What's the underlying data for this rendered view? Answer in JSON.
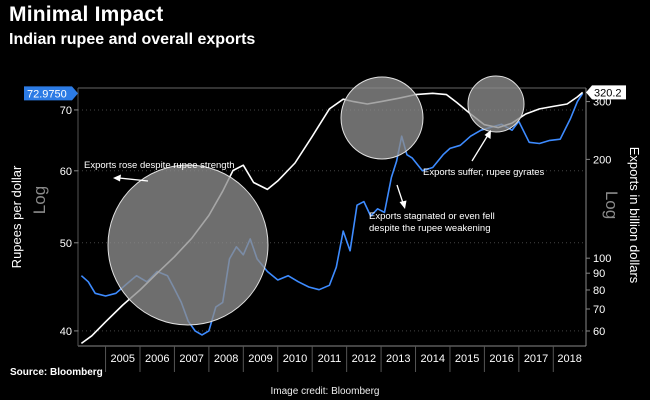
{
  "header": {
    "title": "Minimal Impact",
    "subtitle": "Indian rupee and overall exports"
  },
  "footer": {
    "source": "Source:  Bloomberg",
    "credit": "Image credit: Bloomberg"
  },
  "colors": {
    "rupee": "#3d8bff",
    "exports": "#ffffff",
    "badge": "#2c7be5",
    "circle": "#8d8d8d"
  },
  "chart_data": {
    "type": "line",
    "title": "Minimal Impact",
    "subtitle": "Indian rupee and overall exports",
    "x_ticks": [
      "2005",
      "2006",
      "2007",
      "2008",
      "2009",
      "2010",
      "2011",
      "2012",
      "2013",
      "2014",
      "2015",
      "2016",
      "2017",
      "2018"
    ],
    "x_range": [
      2004.2,
      2018.95
    ],
    "left_axis": {
      "label": "Rupees per dollar",
      "scale": "Log",
      "range": [
        38.5,
        74
      ],
      "ticks": [
        40,
        50,
        60,
        70
      ],
      "last_value_label": "72.9750"
    },
    "right_axis": {
      "label": "Exports in billion dollars",
      "scale": "Log",
      "range": [
        54,
        330
      ],
      "ticks": [
        60,
        70,
        80,
        90,
        100,
        200,
        300
      ],
      "last_value_label": "320.2"
    },
    "series": [
      {
        "name": "Rupees per dollar",
        "axis": "left",
        "x": [
          2004.3,
          2004.5,
          2004.7,
          2005.0,
          2005.3,
          2005.6,
          2005.9,
          2006.2,
          2006.5,
          2006.8,
          2007.0,
          2007.2,
          2007.4,
          2007.6,
          2007.8,
          2008.0,
          2008.2,
          2008.4,
          2008.6,
          2008.8,
          2009.0,
          2009.2,
          2009.4,
          2009.7,
          2010.0,
          2010.3,
          2010.6,
          2010.9,
          2011.2,
          2011.5,
          2011.7,
          2011.9,
          2012.1,
          2012.3,
          2012.5,
          2012.7,
          2012.9,
          2013.1,
          2013.3,
          2013.45,
          2013.6,
          2013.75,
          2013.9,
          2014.2,
          2014.5,
          2014.8,
          2015.0,
          2015.3,
          2015.6,
          2015.9,
          2016.2,
          2016.5,
          2016.8,
          2017.0,
          2017.3,
          2017.6,
          2017.9,
          2018.2,
          2018.5,
          2018.7,
          2018.85
        ],
        "values": [
          46.0,
          45.3,
          44.0,
          43.7,
          44.0,
          45.0,
          46.0,
          45.3,
          46.5,
          46.0,
          44.5,
          43.0,
          41.0,
          40.0,
          39.6,
          40.0,
          42.5,
          43.0,
          48.0,
          49.5,
          48.5,
          50.5,
          48.0,
          46.5,
          45.5,
          46.0,
          45.3,
          44.7,
          44.4,
          44.9,
          47.0,
          51.5,
          49.0,
          55.0,
          55.5,
          53.5,
          54.5,
          54.0,
          59.0,
          61.5,
          65.5,
          62.5,
          62.0,
          60.0,
          60.5,
          62.5,
          63.5,
          64.0,
          65.5,
          66.5,
          67.0,
          67.5,
          66.5,
          68.0,
          64.5,
          64.3,
          64.8,
          65.0,
          68.5,
          71.5,
          73.0
        ]
      },
      {
        "name": "Exports (billion dollars)",
        "axis": "right",
        "x": [
          2004.3,
          2004.6,
          2005.0,
          2005.5,
          2006.0,
          2006.5,
          2007.0,
          2007.5,
          2008.0,
          2008.4,
          2008.7,
          2009.0,
          2009.3,
          2009.7,
          2010.0,
          2010.5,
          2011.0,
          2011.5,
          2011.9,
          2012.2,
          2012.6,
          2013.0,
          2013.5,
          2014.0,
          2014.5,
          2014.9,
          2015.2,
          2015.6,
          2016.0,
          2016.4,
          2016.8,
          2017.2,
          2017.6,
          2018.0,
          2018.4,
          2018.7,
          2018.85
        ],
        "values": [
          55,
          58,
          64,
          72,
          80,
          90,
          101,
          115,
          135,
          160,
          185,
          192,
          170,
          162,
          172,
          195,
          235,
          285,
          305,
          300,
          295,
          300,
          307,
          315,
          318,
          315,
          298,
          275,
          255,
          250,
          258,
          275,
          285,
          290,
          295,
          310,
          320
        ]
      }
    ],
    "annotations": [
      "Exports rose despite rupee strength",
      "Exports stagnated or even fell despite the rupee weakening",
      "Exports suffer, rupee gyrates"
    ]
  }
}
